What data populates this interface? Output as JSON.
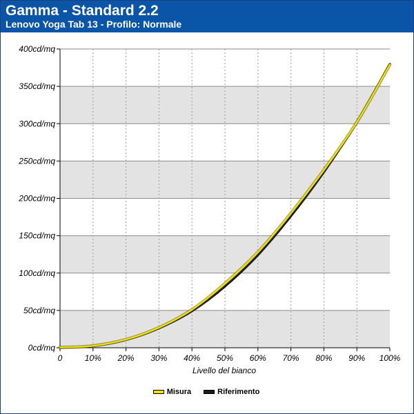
{
  "header": {
    "title": "Gamma - Standard 2.2",
    "subtitle": "Lenovo Yoga Tab 13 - Profilo: Normale"
  },
  "colors": {
    "header_bg": "#0a55a8",
    "misura": "#f0e000",
    "riferimento": "#1a1a1a",
    "band": "#e3e3e3"
  },
  "chart_data": {
    "type": "line",
    "title": "Gamma - Standard 2.2",
    "subtitle": "Lenovo Yoga Tab 13 - Profilo: Normale",
    "xlabel": "Livello del bianco",
    "ylabel": "",
    "xlim": [
      0,
      100
    ],
    "ylim": [
      0,
      400
    ],
    "grid": true,
    "legend_position": "bottom",
    "x_ticks": [
      "0",
      "10%",
      "20%",
      "30%",
      "40%",
      "50%",
      "60%",
      "70%",
      "80%",
      "90%",
      "100%"
    ],
    "y_ticks": [
      "0cd/mq",
      "50cd/mq",
      "100cd/mq",
      "150cd/mq",
      "200cd/mq",
      "250cd/mq",
      "300cd/mq",
      "350cd/mq",
      "400cd/mq"
    ],
    "x": [
      0,
      10,
      20,
      30,
      40,
      50,
      60,
      70,
      80,
      90,
      100
    ],
    "series": [
      {
        "name": "Misura",
        "values": [
          0.5,
          2.6,
          11,
          27,
          51,
          86,
          128,
          180,
          238,
          302,
          379
        ]
      },
      {
        "name": "Riferimento",
        "values": [
          0,
          2.4,
          10.5,
          26,
          49,
          82,
          124,
          176,
          235,
          302,
          380
        ]
      }
    ]
  }
}
